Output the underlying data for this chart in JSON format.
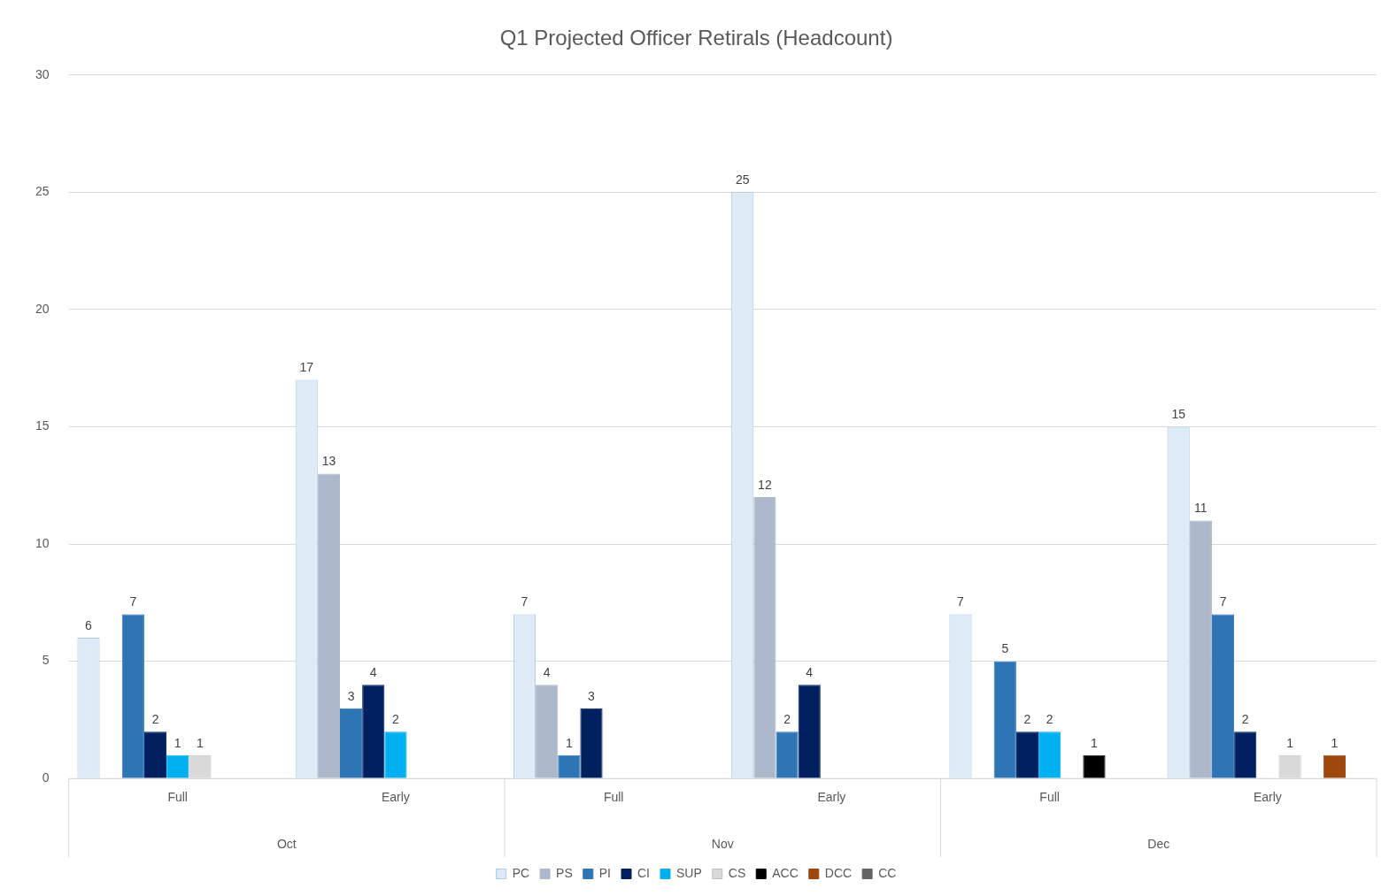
{
  "chart_data": {
    "type": "bar",
    "title": "Q1 Projected Officer Retirals (Headcount)",
    "categories": [
      "Full",
      "Early",
      "Full",
      "Early",
      "Full",
      "Early"
    ],
    "annotations": [
      "Oct",
      "Nov",
      "Dec"
    ],
    "series": [
      {
        "name": "PC",
        "color": "#deebf7",
        "values": [
          6,
          17,
          7,
          25,
          7,
          15
        ]
      },
      {
        "name": "PS",
        "color": "#adb9ca",
        "values": [
          null,
          13,
          4,
          12,
          null,
          11
        ]
      },
      {
        "name": "PI",
        "color": "#2e75b6",
        "values": [
          7,
          3,
          1,
          2,
          5,
          7
        ]
      },
      {
        "name": "CI",
        "color": "#002060",
        "values": [
          2,
          4,
          3,
          4,
          2,
          2
        ]
      },
      {
        "name": "SUP",
        "color": "#00b0f0",
        "values": [
          1,
          2,
          null,
          null,
          2,
          null
        ]
      },
      {
        "name": "CS",
        "color": "#d9d9d9",
        "values": [
          1,
          null,
          null,
          null,
          null,
          1
        ]
      },
      {
        "name": "ACC",
        "color": "#000000",
        "values": [
          null,
          null,
          null,
          null,
          1,
          null
        ]
      },
      {
        "name": "DCC",
        "color": "#9e480e",
        "values": [
          null,
          null,
          null,
          null,
          null,
          1
        ]
      },
      {
        "name": "CC",
        "color": "#636363",
        "values": [
          null,
          null,
          null,
          null,
          null,
          null
        ]
      }
    ],
    "ylim": [
      0,
      30
    ],
    "yticks": [
      0,
      5,
      10,
      15,
      20,
      25,
      30
    ],
    "grid": "y",
    "legend": "bottom",
    "data_labels": true
  }
}
